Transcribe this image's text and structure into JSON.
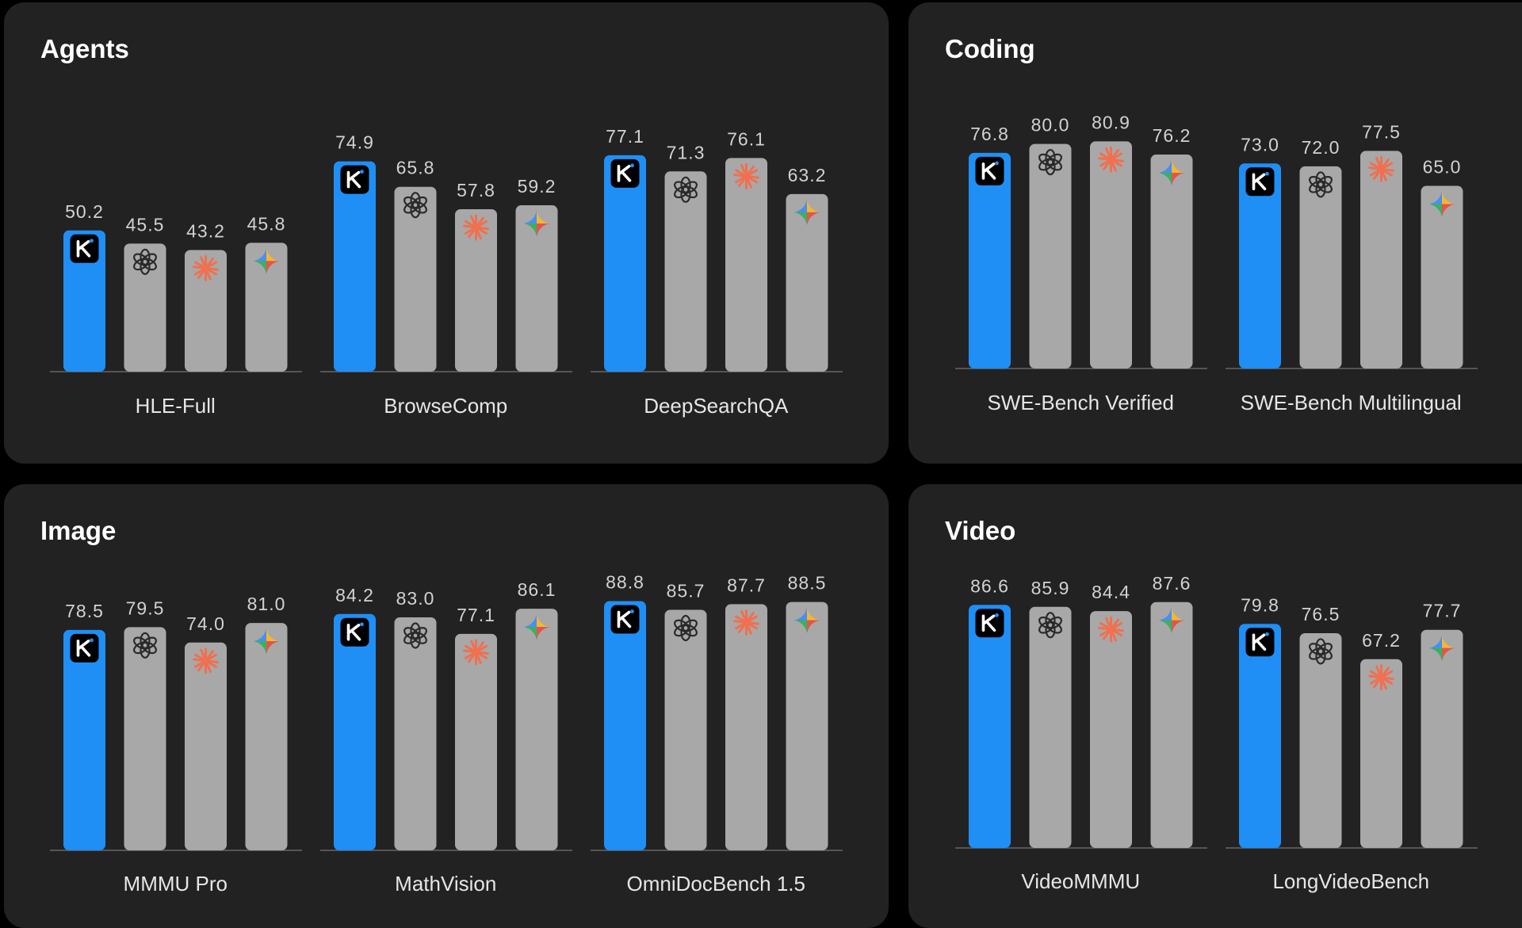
{
  "colors": {
    "page_background": "#000000",
    "panel_background": "#222222",
    "kimi_bar": "#1f8ff6",
    "other_bar": "#a8a8a8",
    "axis": "#555555",
    "claude_star": "#f07050",
    "kimi_badge": "#000000"
  },
  "series_icons": [
    "kimi-logo-icon",
    "openai-logo-icon",
    "claude-star-icon",
    "gemini-sparkle-icon"
  ],
  "chart_data": [
    {
      "type": "bar",
      "title": "Agents",
      "categories": [
        "HLE-Full",
        "BrowseComp",
        "DeepSearchQA"
      ],
      "series": [
        {
          "name": "Kimi",
          "values": [
            50.2,
            74.9,
            77.1
          ]
        },
        {
          "name": "OpenAI",
          "values": [
            45.5,
            65.8,
            71.3
          ]
        },
        {
          "name": "Claude",
          "values": [
            43.2,
            57.8,
            76.1
          ]
        },
        {
          "name": "Gemini",
          "values": [
            45.8,
            59.2,
            63.2
          ]
        }
      ],
      "value_labels": [
        [
          "50.2",
          "45.5",
          "43.2",
          "45.8"
        ],
        [
          "74.9",
          "65.8",
          "57.8",
          "59.2"
        ],
        [
          "77.1",
          "71.3",
          "76.1",
          "63.2"
        ]
      ],
      "ylim": [
        0,
        100
      ]
    },
    {
      "type": "bar",
      "title": "Coding",
      "categories": [
        "SWE-Bench Verified",
        "SWE-Bench Multilingual"
      ],
      "series": [
        {
          "name": "Kimi",
          "values": [
            76.8,
            73.0
          ]
        },
        {
          "name": "OpenAI",
          "values": [
            80.0,
            72.0
          ]
        },
        {
          "name": "Claude",
          "values": [
            80.9,
            77.5
          ]
        },
        {
          "name": "Gemini",
          "values": [
            76.2,
            65.0
          ]
        }
      ],
      "value_labels": [
        [
          "76.8",
          "80.0",
          "80.9",
          "76.2"
        ],
        [
          "73.0",
          "72.0",
          "77.5",
          "65.0"
        ]
      ],
      "ylim": [
        0,
        100
      ]
    },
    {
      "type": "bar",
      "title": "Image",
      "categories": [
        "MMMU Pro",
        "MathVision",
        "OmniDocBench 1.5"
      ],
      "series": [
        {
          "name": "Kimi",
          "values": [
            78.5,
            84.2,
            88.8
          ]
        },
        {
          "name": "OpenAI",
          "values": [
            79.5,
            83.0,
            85.7
          ]
        },
        {
          "name": "Claude",
          "values": [
            74.0,
            77.1,
            87.7
          ]
        },
        {
          "name": "Gemini",
          "values": [
            81.0,
            86.1,
            88.5
          ]
        }
      ],
      "value_labels": [
        [
          "78.5",
          "79.5",
          "74.0",
          "81.0"
        ],
        [
          "84.2",
          "83.0",
          "77.1",
          "86.1"
        ],
        [
          "88.8",
          "85.7",
          "87.7",
          "88.5"
        ]
      ],
      "ylim": [
        0,
        100
      ]
    },
    {
      "type": "bar",
      "title": "Video",
      "categories": [
        "VideoMMMU",
        "LongVideoBench"
      ],
      "series": [
        {
          "name": "Kimi",
          "values": [
            86.6,
            79.8
          ]
        },
        {
          "name": "OpenAI",
          "values": [
            85.9,
            76.5
          ]
        },
        {
          "name": "Claude",
          "values": [
            84.4,
            67.2
          ]
        },
        {
          "name": "Gemini",
          "values": [
            87.6,
            77.7
          ]
        }
      ],
      "value_labels": [
        [
          "86.6",
          "85.9",
          "84.4",
          "87.6"
        ],
        [
          "79.8",
          "76.5",
          "67.2",
          "77.7"
        ]
      ],
      "ylim": [
        0,
        100
      ]
    }
  ]
}
